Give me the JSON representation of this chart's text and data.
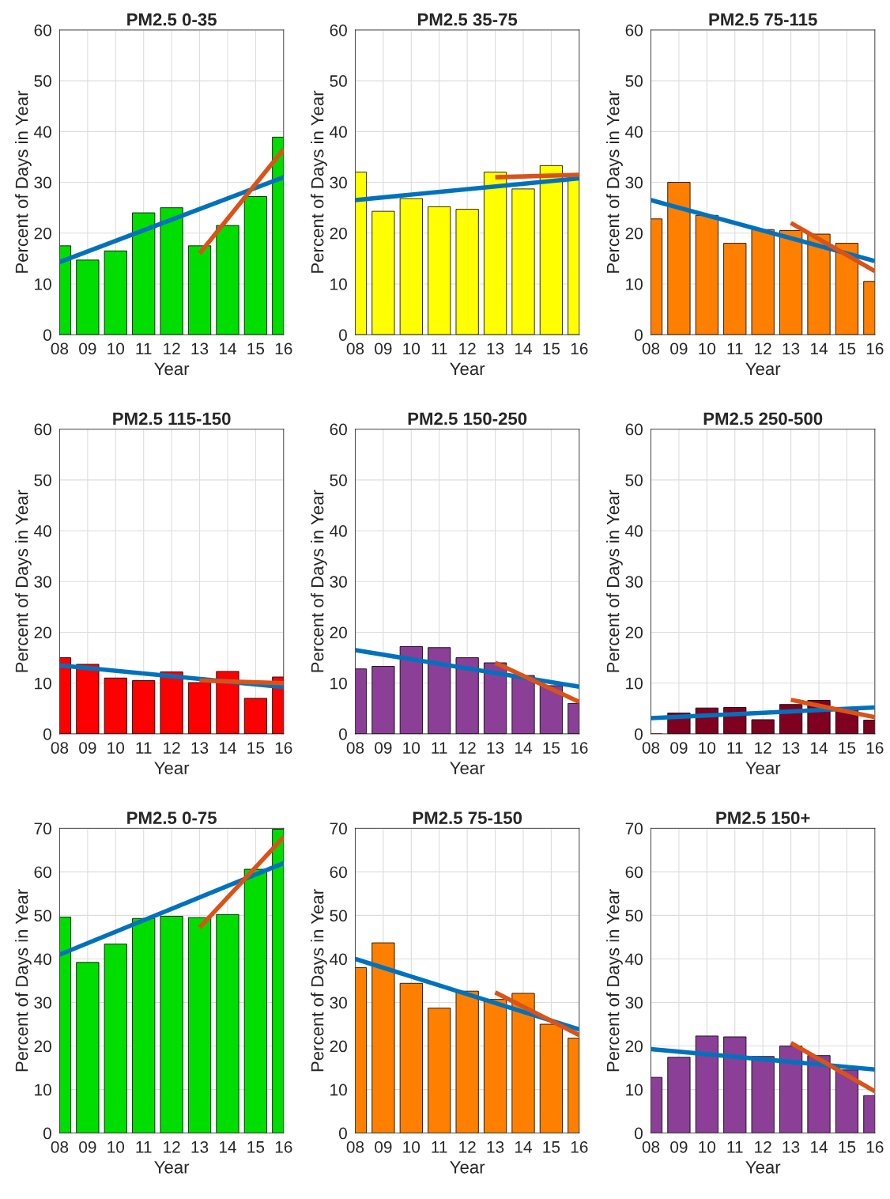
{
  "chart_data": [
    {
      "type": "bar",
      "title": "PM2.5 0-35",
      "xlabel": "Year",
      "ylabel": "Percent of Days in Year",
      "x": [
        8,
        9,
        10,
        11,
        12,
        13,
        14,
        15,
        16
      ],
      "xlim": [
        8,
        16
      ],
      "xticks": [
        {
          "value": 8,
          "label": "08"
        },
        {
          "value": 9,
          "label": "09"
        },
        {
          "value": 10,
          "label": "10"
        },
        {
          "value": 11,
          "label": "11"
        },
        {
          "value": 12,
          "label": "12"
        },
        {
          "value": 13,
          "label": "13"
        },
        {
          "value": 14,
          "label": "14"
        },
        {
          "value": 15,
          "label": "15"
        },
        {
          "value": 16,
          "label": "16"
        }
      ],
      "ylim": [
        0,
        60
      ],
      "yticks": [
        0,
        10,
        20,
        30,
        40,
        50,
        60
      ],
      "grid": true,
      "series": [
        {
          "color": "#00dd00",
          "values": [
            17.5,
            14.7,
            16.5,
            24,
            25,
            17.5,
            21.5,
            27.2,
            38.9
          ]
        },
        {
          "type": "line",
          "color": "#0072bd",
          "x": [
            8,
            16
          ],
          "values": [
            14.3,
            31
          ]
        },
        {
          "type": "line",
          "color": "#d95319",
          "x": [
            13,
            16
          ],
          "values": [
            16,
            36.5
          ]
        }
      ]
    },
    {
      "type": "bar",
      "title": "PM2.5 35-75",
      "xlabel": "Year",
      "ylabel": "Percent of Days in Year",
      "x": [
        8,
        9,
        10,
        11,
        12,
        13,
        14,
        15,
        16
      ],
      "xlim": [
        8,
        16
      ],
      "xticks": [
        {
          "value": 8,
          "label": "08"
        },
        {
          "value": 9,
          "label": "09"
        },
        {
          "value": 10,
          "label": "10"
        },
        {
          "value": 11,
          "label": "11"
        },
        {
          "value": 12,
          "label": "12"
        },
        {
          "value": 13,
          "label": "13"
        },
        {
          "value": 14,
          "label": "14"
        },
        {
          "value": 15,
          "label": "15"
        },
        {
          "value": 16,
          "label": "16"
        }
      ],
      "ylim": [
        0,
        60
      ],
      "yticks": [
        0,
        10,
        20,
        30,
        40,
        50,
        60
      ],
      "grid": true,
      "series": [
        {
          "color": "#ffff00",
          "values": [
            32,
            24.3,
            26.8,
            25.2,
            24.7,
            32,
            28.7,
            33.3,
            31
          ]
        },
        {
          "type": "line",
          "color": "#0072bd",
          "x": [
            8,
            16
          ],
          "values": [
            26.5,
            30.8
          ]
        },
        {
          "type": "line",
          "color": "#d95319",
          "x": [
            13,
            16
          ],
          "values": [
            31,
            31.5
          ]
        }
      ]
    },
    {
      "type": "bar",
      "title": "PM2.5 75-115",
      "xlabel": "Year",
      "ylabel": "Percent of Days in Year",
      "x": [
        8,
        9,
        10,
        11,
        12,
        13,
        14,
        15,
        16
      ],
      "xlim": [
        8,
        16
      ],
      "xticks": [
        {
          "value": 8,
          "label": "08"
        },
        {
          "value": 9,
          "label": "09"
        },
        {
          "value": 10,
          "label": "10"
        },
        {
          "value": 11,
          "label": "11"
        },
        {
          "value": 12,
          "label": "12"
        },
        {
          "value": 13,
          "label": "13"
        },
        {
          "value": 14,
          "label": "14"
        },
        {
          "value": 15,
          "label": "15"
        },
        {
          "value": 16,
          "label": "16"
        }
      ],
      "ylim": [
        0,
        60
      ],
      "yticks": [
        0,
        10,
        20,
        30,
        40,
        50,
        60
      ],
      "grid": true,
      "series": [
        {
          "color": "#ff8000",
          "values": [
            22.8,
            30,
            23.5,
            18,
            20.7,
            20.5,
            19.8,
            18,
            10.5
          ]
        },
        {
          "type": "line",
          "color": "#0072bd",
          "x": [
            8,
            16
          ],
          "values": [
            26.5,
            14.5
          ]
        },
        {
          "type": "line",
          "color": "#d95319",
          "x": [
            13,
            16
          ],
          "values": [
            22,
            12.5
          ]
        }
      ]
    },
    {
      "type": "bar",
      "title": "PM2.5 115-150",
      "xlabel": "Year",
      "ylabel": "Percent of Days in Year",
      "x": [
        8,
        9,
        10,
        11,
        12,
        13,
        14,
        15,
        16
      ],
      "xlim": [
        8,
        16
      ],
      "xticks": [
        {
          "value": 8,
          "label": "08"
        },
        {
          "value": 9,
          "label": "09"
        },
        {
          "value": 10,
          "label": "10"
        },
        {
          "value": 11,
          "label": "11"
        },
        {
          "value": 12,
          "label": "12"
        },
        {
          "value": 13,
          "label": "13"
        },
        {
          "value": 14,
          "label": "14"
        },
        {
          "value": 15,
          "label": "15"
        },
        {
          "value": 16,
          "label": "16"
        }
      ],
      "ylim": [
        0,
        60
      ],
      "yticks": [
        0,
        10,
        20,
        30,
        40,
        50,
        60
      ],
      "grid": true,
      "series": [
        {
          "color": "#ff0000",
          "values": [
            15,
            13.7,
            11,
            10.5,
            12.2,
            10.1,
            12.3,
            7,
            11.2
          ]
        },
        {
          "type": "line",
          "color": "#0072bd",
          "x": [
            8,
            16
          ],
          "values": [
            13.5,
            9.2
          ]
        },
        {
          "type": "line",
          "color": "#d95319",
          "x": [
            13,
            16
          ],
          "values": [
            10.5,
            10
          ]
        }
      ]
    },
    {
      "type": "bar",
      "title": "PM2.5 150-250",
      "xlabel": "Year",
      "ylabel": "Percent of Days in Year",
      "x": [
        8,
        9,
        10,
        11,
        12,
        13,
        14,
        15,
        16
      ],
      "xlim": [
        8,
        16
      ],
      "xticks": [
        {
          "value": 8,
          "label": "08"
        },
        {
          "value": 9,
          "label": "09"
        },
        {
          "value": 10,
          "label": "10"
        },
        {
          "value": 11,
          "label": "11"
        },
        {
          "value": 12,
          "label": "12"
        },
        {
          "value": 13,
          "label": "13"
        },
        {
          "value": 14,
          "label": "14"
        },
        {
          "value": 15,
          "label": "15"
        },
        {
          "value": 16,
          "label": "16"
        }
      ],
      "ylim": [
        0,
        60
      ],
      "yticks": [
        0,
        10,
        20,
        30,
        40,
        50,
        60
      ],
      "grid": true,
      "series": [
        {
          "color": "#8b3f96",
          "values": [
            12.8,
            13.3,
            17.2,
            17,
            15,
            14,
            11.5,
            9.5,
            6
          ]
        },
        {
          "type": "line",
          "color": "#0072bd",
          "x": [
            8,
            16
          ],
          "values": [
            16.5,
            9.3
          ]
        },
        {
          "type": "line",
          "color": "#d95319",
          "x": [
            13,
            16
          ],
          "values": [
            14,
            6.3
          ]
        }
      ]
    },
    {
      "type": "bar",
      "title": "PM2.5 250-500",
      "xlabel": "Year",
      "ylabel": "Percent of Days in Year",
      "x": [
        8,
        9,
        10,
        11,
        12,
        13,
        14,
        15,
        16
      ],
      "xlim": [
        8,
        16
      ],
      "xticks": [
        {
          "value": 8,
          "label": "08"
        },
        {
          "value": 9,
          "label": "09"
        },
        {
          "value": 10,
          "label": "10"
        },
        {
          "value": 11,
          "label": "11"
        },
        {
          "value": 12,
          "label": "12"
        },
        {
          "value": 13,
          "label": "13"
        },
        {
          "value": 14,
          "label": "14"
        },
        {
          "value": 15,
          "label": "15"
        },
        {
          "value": 16,
          "label": "16"
        }
      ],
      "ylim": [
        0,
        60
      ],
      "yticks": [
        0,
        10,
        20,
        30,
        40,
        50,
        60
      ],
      "grid": true,
      "series": [
        {
          "color": "#800020",
          "values": [
            0,
            4.1,
            5.1,
            5.2,
            2.8,
            5.8,
            6.6,
            5,
            2.7
          ]
        },
        {
          "type": "line",
          "color": "#0072bd",
          "x": [
            8,
            16
          ],
          "values": [
            3.1,
            5.2
          ]
        },
        {
          "type": "line",
          "color": "#d95319",
          "x": [
            13,
            16
          ],
          "values": [
            6.7,
            3.3
          ]
        }
      ]
    },
    {
      "type": "bar",
      "title": "PM2.5 0-75",
      "xlabel": "Year",
      "ylabel": "Percent of Days in Year",
      "x": [
        8,
        9,
        10,
        11,
        12,
        13,
        14,
        15,
        16
      ],
      "xlim": [
        8,
        16
      ],
      "xticks": [
        {
          "value": 8,
          "label": "08"
        },
        {
          "value": 9,
          "label": "09"
        },
        {
          "value": 10,
          "label": "10"
        },
        {
          "value": 11,
          "label": "11"
        },
        {
          "value": 12,
          "label": "12"
        },
        {
          "value": 13,
          "label": "13"
        },
        {
          "value": 14,
          "label": "14"
        },
        {
          "value": 15,
          "label": "15"
        },
        {
          "value": 16,
          "label": "16"
        }
      ],
      "ylim": [
        0,
        70
      ],
      "yticks": [
        0,
        10,
        20,
        30,
        40,
        50,
        60,
        70
      ],
      "grid": true,
      "series": [
        {
          "color": "#00dd00",
          "values": [
            49.6,
            39.2,
            43.4,
            49.3,
            49.8,
            49.5,
            50.2,
            60.6,
            69.8
          ]
        },
        {
          "type": "line",
          "color": "#0072bd",
          "x": [
            8,
            16
          ],
          "values": [
            41,
            62
          ]
        },
        {
          "type": "line",
          "color": "#d95319",
          "x": [
            13,
            16
          ],
          "values": [
            47.2,
            68
          ]
        }
      ]
    },
    {
      "type": "bar",
      "title": "PM2.5 75-150",
      "xlabel": "Year",
      "ylabel": "Percent of Days in Year",
      "x": [
        8,
        9,
        10,
        11,
        12,
        13,
        14,
        15,
        16
      ],
      "xlim": [
        8,
        16
      ],
      "xticks": [
        {
          "value": 8,
          "label": "08"
        },
        {
          "value": 9,
          "label": "09"
        },
        {
          "value": 10,
          "label": "10"
        },
        {
          "value": 11,
          "label": "11"
        },
        {
          "value": 12,
          "label": "12"
        },
        {
          "value": 13,
          "label": "13"
        },
        {
          "value": 14,
          "label": "14"
        },
        {
          "value": 15,
          "label": "15"
        },
        {
          "value": 16,
          "label": "16"
        }
      ],
      "ylim": [
        0,
        70
      ],
      "yticks": [
        0,
        10,
        20,
        30,
        40,
        50,
        60,
        70
      ],
      "grid": true,
      "series": [
        {
          "color": "#ff8000",
          "values": [
            38,
            43.7,
            34.4,
            28.7,
            32.6,
            30.7,
            32.1,
            25,
            21.8
          ]
        },
        {
          "type": "line",
          "color": "#0072bd",
          "x": [
            8,
            16
          ],
          "values": [
            40,
            23.8
          ]
        },
        {
          "type": "line",
          "color": "#d95319",
          "x": [
            13,
            16
          ],
          "values": [
            32.3,
            22.5
          ]
        }
      ]
    },
    {
      "type": "bar",
      "title": "PM2.5 150+",
      "xlabel": "Year",
      "ylabel": "Percent of Days in Year",
      "x": [
        8,
        9,
        10,
        11,
        12,
        13,
        14,
        15,
        16
      ],
      "xlim": [
        8,
        16
      ],
      "xticks": [
        {
          "value": 8,
          "label": "08"
        },
        {
          "value": 9,
          "label": "09"
        },
        {
          "value": 10,
          "label": "10"
        },
        {
          "value": 11,
          "label": "11"
        },
        {
          "value": 12,
          "label": "12"
        },
        {
          "value": 13,
          "label": "13"
        },
        {
          "value": 14,
          "label": "14"
        },
        {
          "value": 15,
          "label": "15"
        },
        {
          "value": 16,
          "label": "16"
        }
      ],
      "ylim": [
        0,
        70
      ],
      "yticks": [
        0,
        10,
        20,
        30,
        40,
        50,
        60,
        70
      ],
      "grid": true,
      "series": [
        {
          "color": "#8b3f96",
          "values": [
            12.8,
            17.4,
            22.3,
            22.1,
            17.6,
            20,
            17.8,
            14.5,
            8.6
          ]
        },
        {
          "type": "line",
          "color": "#0072bd",
          "x": [
            8,
            16
          ],
          "values": [
            19.3,
            14.6
          ]
        },
        {
          "type": "line",
          "color": "#d95319",
          "x": [
            13,
            16
          ],
          "values": [
            20.7,
            9.6
          ]
        }
      ]
    }
  ]
}
